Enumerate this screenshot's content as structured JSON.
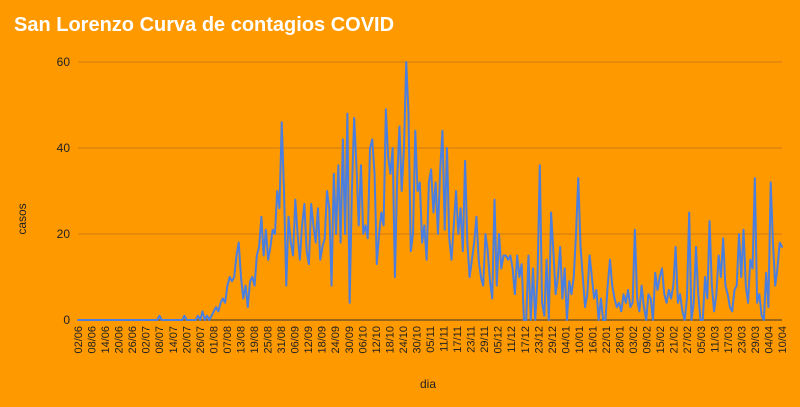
{
  "chart_data": {
    "type": "line",
    "title": "San Lorenzo Curva de contagios COVID",
    "xlabel": "dia",
    "ylabel": "casos",
    "ylim": [
      0,
      60
    ],
    "yticks": [
      0,
      20,
      40,
      60
    ],
    "grid": true,
    "legend": "none",
    "colors": {
      "background": "#ff9900",
      "line": "#4a7fe0",
      "grid": "#cc7a1a",
      "title": "#ffffff"
    },
    "x_tick_labels": [
      "02/06",
      "08/06",
      "14/06",
      "20/06",
      "26/06",
      "02/07",
      "08/07",
      "14/07",
      "20/07",
      "26/07",
      "01/08",
      "07/08",
      "13/08",
      "19/08",
      "25/08",
      "31/08",
      "06/09",
      "12/09",
      "18/09",
      "24/09",
      "30/09",
      "06/10",
      "12/10",
      "18/10",
      "24/10",
      "30/10",
      "05/11",
      "11/11",
      "17/11",
      "23/11",
      "29/11",
      "05/12",
      "11/12",
      "17/12",
      "23/12",
      "29/12",
      "04/01",
      "10/01",
      "16/01",
      "22/01",
      "28/01",
      "03/02",
      "09/02",
      "15/02",
      "21/02",
      "27/02",
      "05/03",
      "11/03",
      "17/03",
      "23/03",
      "29/03",
      "04/04",
      "10/04"
    ],
    "series": [
      {
        "values": [
          0,
          0,
          0,
          0,
          0,
          0,
          0,
          0,
          0,
          0,
          0,
          0,
          0,
          0,
          0,
          0,
          0,
          0,
          0,
          0,
          0,
          0,
          0,
          0,
          0,
          0,
          0,
          0,
          0,
          0,
          0,
          0,
          0,
          0,
          0,
          0,
          1,
          0,
          0,
          0,
          0,
          0,
          0,
          0,
          0,
          0,
          0,
          1,
          0,
          0,
          0,
          0,
          0,
          1,
          0,
          2,
          0,
          1,
          0,
          1,
          2,
          3,
          2,
          4,
          5,
          4,
          8,
          10,
          9,
          10,
          15,
          18,
          10,
          5,
          8,
          3,
          9,
          10,
          8,
          15,
          17,
          24,
          15,
          21,
          14,
          17,
          21,
          20,
          30,
          26,
          46,
          30,
          8,
          24,
          18,
          15,
          28,
          20,
          14,
          22,
          27,
          16,
          13,
          27,
          22,
          18,
          26,
          14,
          17,
          19,
          30,
          26,
          8,
          34,
          20,
          36,
          18,
          42,
          20,
          48,
          4,
          30,
          47,
          36,
          22,
          36,
          20,
          22,
          19,
          40,
          42,
          34,
          13,
          20,
          25,
          22,
          49,
          38,
          34,
          40,
          10,
          33,
          45,
          30,
          40,
          60,
          48,
          16,
          20,
          44,
          30,
          32,
          18,
          22,
          14,
          32,
          35,
          25,
          32,
          20,
          35,
          44,
          21,
          40,
          19,
          14,
          22,
          30,
          20,
          26,
          16,
          37,
          18,
          10,
          14,
          18,
          24,
          14,
          10,
          8,
          20,
          16,
          9,
          5,
          28,
          8,
          20,
          12,
          15,
          15,
          14,
          15,
          12,
          6,
          15,
          10,
          13,
          0,
          0,
          15,
          0,
          12,
          0,
          10,
          36,
          4,
          1,
          14,
          0,
          25,
          16,
          6,
          10,
          17,
          5,
          12,
          0,
          9,
          6,
          10,
          20,
          33,
          17,
          10,
          3,
          6,
          15,
          10,
          5,
          7,
          0,
          5,
          0,
          0,
          8,
          14,
          8,
          5,
          3,
          4,
          2,
          6,
          4,
          7,
          3,
          4,
          21,
          5,
          2,
          8,
          3,
          0,
          6,
          5,
          0,
          11,
          7,
          10,
          12,
          6,
          4,
          7,
          5,
          8,
          17,
          4,
          6,
          2,
          0,
          5,
          25,
          0,
          4,
          17,
          6,
          0,
          0,
          10,
          5,
          23,
          8,
          2,
          6,
          15,
          10,
          19,
          8,
          6,
          3,
          2,
          7,
          8,
          20,
          10,
          21,
          8,
          4,
          14,
          12,
          33,
          4,
          6,
          1,
          0,
          11,
          3,
          32,
          18,
          8,
          12,
          18,
          17
        ]
      }
    ]
  }
}
